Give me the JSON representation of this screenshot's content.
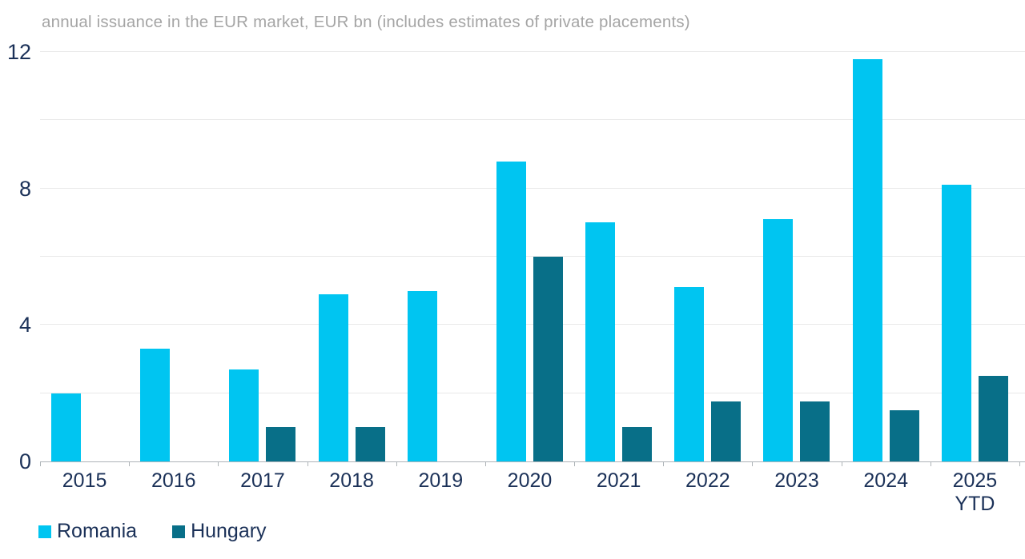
{
  "chart_data": {
    "type": "bar",
    "title": "annual issuance in the EUR market, EUR bn (includes estimates of private placements)",
    "unit": "EUR bn",
    "categories": [
      "2015",
      "2016",
      "2017",
      "2018",
      "2019",
      "2020",
      "2021",
      "2022",
      "2023",
      "2024",
      "2025 YTD"
    ],
    "series": [
      {
        "name": "Romania",
        "color": "#00c5f1",
        "values": [
          2.0,
          3.3,
          2.7,
          4.9,
          5.0,
          8.8,
          7.0,
          5.1,
          7.1,
          11.8,
          8.1
        ]
      },
      {
        "name": "Hungary",
        "color": "#086f88",
        "values": [
          null,
          null,
          1.0,
          1.0,
          null,
          6.0,
          1.0,
          1.75,
          1.75,
          1.5,
          2.5
        ]
      }
    ],
    "ylim": [
      0,
      12
    ],
    "y_tick_labels": [
      "0",
      "4",
      "8",
      "12"
    ],
    "y_gridline_values": [
      2,
      4,
      6,
      8,
      10,
      12
    ],
    "grid": true,
    "legend_position": "bottom-left",
    "xlabel": "",
    "ylabel": ""
  },
  "colors": {
    "axis_text": "#1b3158",
    "title_text": "#a5a5a5",
    "gridline": "#e9e9e9",
    "axis_line": "#aeb4b8"
  }
}
